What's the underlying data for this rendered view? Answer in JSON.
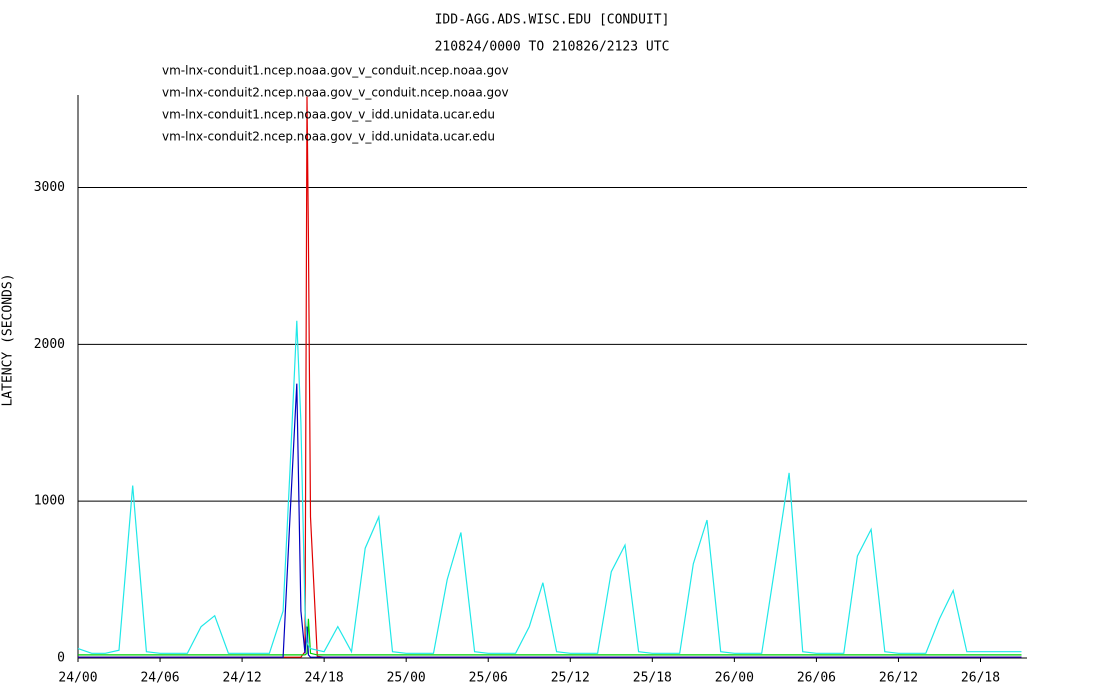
{
  "chart_data": {
    "type": "line",
    "title": "IDD-AGG.ADS.WISC.EDU [CONDUIT]",
    "subtitle": "210824/0000 TO 210826/2123 UTC",
    "y_label": "LATENCY (SECONDS)",
    "x": [
      0,
      1,
      2,
      3,
      4,
      5,
      6,
      7,
      8,
      9,
      10,
      11,
      12,
      13,
      14,
      15,
      15.5,
      16,
      16.3,
      16.6,
      16.75,
      16.85,
      17,
      17.5,
      18,
      19,
      20,
      21,
      22,
      23,
      24,
      25,
      26,
      27,
      28,
      29,
      30,
      31,
      32,
      33,
      34,
      35,
      36,
      37,
      38,
      39,
      40,
      41,
      42,
      43,
      44,
      45,
      46,
      47,
      48,
      49,
      50,
      51,
      52,
      53,
      54,
      55,
      56,
      57,
      58,
      59,
      60,
      61,
      62,
      63,
      64,
      65,
      66,
      67,
      68,
      69
    ],
    "xlim": [
      0,
      69.4
    ],
    "xticks": [
      {
        "value": 0,
        "label": "24/00"
      },
      {
        "value": 6,
        "label": "24/06"
      },
      {
        "value": 12,
        "label": "24/12"
      },
      {
        "value": 18,
        "label": "24/18"
      },
      {
        "value": 24,
        "label": "25/00"
      },
      {
        "value": 30,
        "label": "25/06"
      },
      {
        "value": 36,
        "label": "25/12"
      },
      {
        "value": 42,
        "label": "25/18"
      },
      {
        "value": 48,
        "label": "26/00"
      },
      {
        "value": 54,
        "label": "26/06"
      },
      {
        "value": 60,
        "label": "26/12"
      },
      {
        "value": 66,
        "label": "26/18"
      }
    ],
    "ylim": [
      0,
      3590
    ],
    "yticks": [
      0,
      1000,
      2000,
      3000
    ],
    "grid": true,
    "series": [
      {
        "name": "vm-lnx-conduit1.ncep.noaa.gov_v_conduit.ncep.noaa.gov",
        "color": "#e00000",
        "values": [
          5,
          5,
          5,
          5,
          5,
          5,
          5,
          5,
          5,
          5,
          5,
          5,
          5,
          5,
          5,
          5,
          5,
          5,
          5,
          40,
          3580,
          2700,
          900,
          10,
          5,
          5,
          5,
          5,
          5,
          5,
          5,
          5,
          5,
          5,
          5,
          5,
          5,
          5,
          5,
          5,
          5,
          5,
          5,
          5,
          5,
          5,
          5,
          5,
          5,
          5,
          5,
          5,
          5,
          5,
          5,
          5,
          5,
          5,
          5,
          5,
          5,
          5,
          5,
          5,
          5,
          5,
          5,
          5,
          5,
          5,
          5,
          5,
          5,
          5,
          5,
          5
        ]
      },
      {
        "name": "vm-lnx-conduit2.ncep.noaa.gov_v_conduit.ncep.noaa.gov",
        "color": "#00d000",
        "values": [
          20,
          20,
          20,
          20,
          20,
          20,
          20,
          20,
          20,
          20,
          20,
          20,
          20,
          20,
          20,
          20,
          20,
          20,
          20,
          20,
          30,
          250,
          30,
          20,
          20,
          20,
          20,
          20,
          20,
          20,
          20,
          20,
          20,
          20,
          20,
          20,
          20,
          20,
          20,
          20,
          20,
          20,
          20,
          20,
          20,
          20,
          20,
          20,
          20,
          20,
          20,
          20,
          20,
          20,
          20,
          20,
          20,
          20,
          20,
          20,
          20,
          20,
          20,
          20,
          20,
          20,
          20,
          20,
          20,
          20,
          20,
          20,
          20,
          20,
          20,
          20
        ]
      },
      {
        "name": "vm-lnx-conduit1.ncep.noaa.gov_v_idd.unidata.ucar.edu",
        "color": "#0000c0",
        "values": [
          5,
          5,
          5,
          5,
          5,
          5,
          5,
          5,
          5,
          5,
          5,
          5,
          5,
          5,
          5,
          5,
          900,
          1750,
          300,
          30,
          200,
          20,
          5,
          5,
          5,
          5,
          5,
          5,
          5,
          5,
          5,
          5,
          5,
          5,
          5,
          5,
          5,
          5,
          5,
          5,
          5,
          5,
          5,
          5,
          5,
          5,
          5,
          5,
          5,
          5,
          5,
          5,
          5,
          5,
          5,
          5,
          5,
          5,
          5,
          5,
          5,
          5,
          5,
          5,
          5,
          5,
          5,
          5,
          5,
          5,
          5,
          5,
          5,
          5,
          5,
          5
        ]
      },
      {
        "name": "vm-lnx-conduit2.ncep.noaa.gov_v_idd.unidata.ucar.edu",
        "color": "#20e8e8",
        "values": [
          60,
          30,
          30,
          50,
          1100,
          40,
          30,
          30,
          30,
          200,
          270,
          30,
          30,
          30,
          30,
          300,
          1200,
          2150,
          1500,
          300,
          100,
          80,
          60,
          50,
          40,
          200,
          40,
          700,
          900,
          40,
          30,
          30,
          30,
          500,
          800,
          40,
          30,
          30,
          30,
          200,
          480,
          40,
          30,
          30,
          30,
          550,
          720,
          40,
          30,
          30,
          30,
          600,
          880,
          40,
          30,
          30,
          30,
          600,
          1180,
          40,
          30,
          30,
          30,
          650,
          820,
          40,
          30,
          30,
          30,
          250,
          430,
          40,
          40,
          40,
          40,
          40
        ]
      }
    ]
  }
}
